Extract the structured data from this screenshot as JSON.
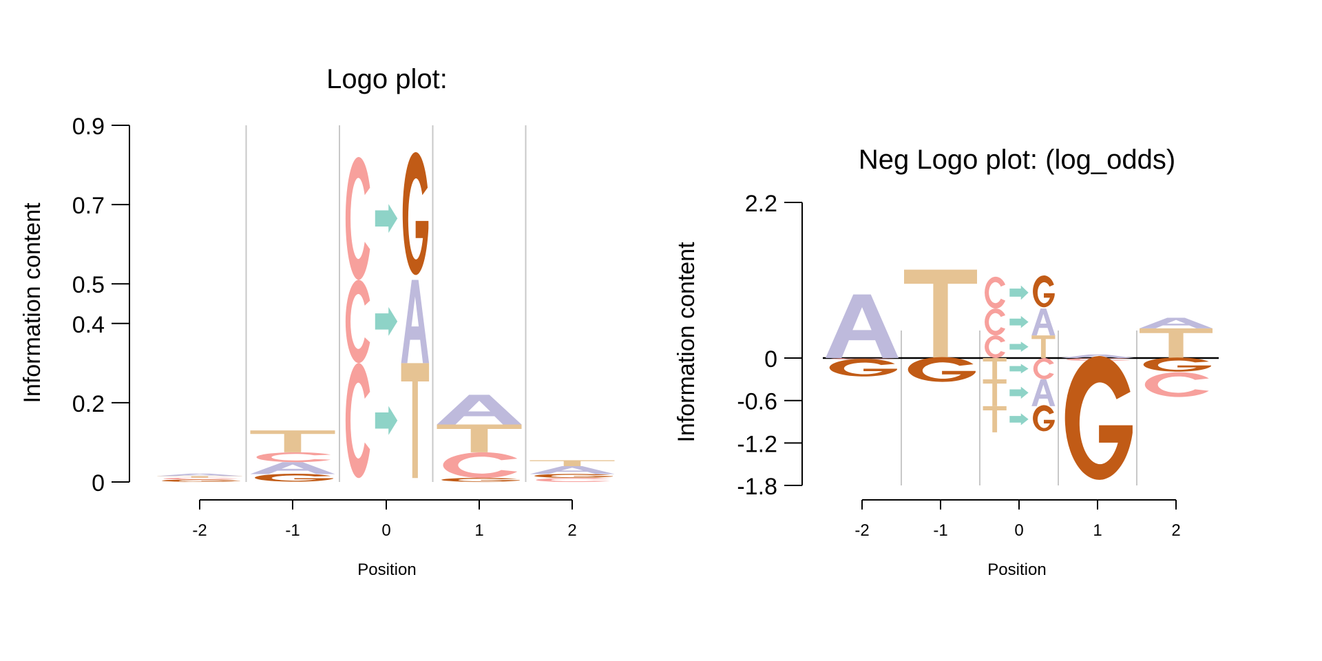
{
  "chart_data": [
    {
      "type": "logo",
      "title": "Logo plot:",
      "ylabel": "Information content",
      "xlabel": "Position",
      "ylim": [
        0,
        0.9
      ],
      "yticks": [
        "0",
        "0.2",
        "0.4",
        "0.5",
        "0.7",
        "0.9"
      ],
      "ytick_values": [
        0,
        0.2,
        0.4,
        0.5,
        0.7,
        0.9
      ],
      "positions": [
        -2,
        -1,
        0,
        1,
        2
      ],
      "xticks": [
        "-2",
        "-1",
        "0",
        "1",
        "2"
      ],
      "stacks": [
        {
          "position": -2,
          "letters": [
            {
              "letter": "G",
              "value": 0.006,
              "color": "#c15b16"
            },
            {
              "letter": "C",
              "value": 0.005,
              "color": "#f7a09c"
            },
            {
              "letter": "T",
              "value": 0.004,
              "color": "#e6c393"
            },
            {
              "letter": "A",
              "value": 0.006,
              "color": "#bebadc"
            }
          ]
        },
        {
          "position": -1,
          "letters": [
            {
              "letter": "G",
              "value": 0.02,
              "color": "#c15b16"
            },
            {
              "letter": "A",
              "value": 0.03,
              "color": "#bebadc"
            },
            {
              "letter": "C",
              "value": 0.025,
              "color": "#f7a09c"
            },
            {
              "letter": "T",
              "value": 0.055,
              "color": "#e6c393"
            }
          ]
        },
        {
          "position": 1,
          "letters": [
            {
              "letter": "G",
              "value": 0.01,
              "color": "#c15b16"
            },
            {
              "letter": "C",
              "value": 0.065,
              "color": "#f7a09c"
            },
            {
              "letter": "T",
              "value": 0.07,
              "color": "#e6c393"
            },
            {
              "letter": "A",
              "value": 0.075,
              "color": "#bebadc"
            }
          ]
        },
        {
          "position": 2,
          "letters": [
            {
              "letter": "C",
              "value": 0.01,
              "color": "#f7a09c"
            },
            {
              "letter": "G",
              "value": 0.01,
              "color": "#c15b16"
            },
            {
              "letter": "A",
              "value": 0.02,
              "color": "#bebadc"
            },
            {
              "letter": "T",
              "value": 0.015,
              "color": "#e6c393"
            }
          ]
        }
      ],
      "mutations": {
        "position": 0,
        "arrow_color": "#8ed3c7",
        "substitutions": [
          {
            "from": "C",
            "from_color": "#f7a09c",
            "to": "T",
            "to_color": "#e6c393",
            "y0": 0.01,
            "y1": 0.3
          },
          {
            "from": "C",
            "from_color": "#f7a09c",
            "to": "A",
            "to_color": "#bebadc",
            "y0": 0.3,
            "y1": 0.51
          },
          {
            "from": "C",
            "from_color": "#f7a09c",
            "to": "G",
            "to_color": "#c15b16",
            "y0": 0.51,
            "y1": 0.82
          }
        ]
      }
    },
    {
      "type": "logo",
      "title": "Neg Logo plot: (log_odds)",
      "ylabel": "Information content",
      "xlabel": "Position",
      "ylim": [
        -1.8,
        2.2
      ],
      "yticks": [
        "-1.8",
        "-1.2",
        "-0.6",
        "0",
        "2.2"
      ],
      "ytick_values": [
        -1.8,
        -1.2,
        -0.6,
        0,
        2.2
      ],
      "positions": [
        -2,
        -1,
        0,
        1,
        2
      ],
      "xticks": [
        "-2",
        "-1",
        "0",
        "1",
        "2"
      ],
      "stacks": [
        {
          "position": -2,
          "letters": [
            {
              "letter": "A",
              "value": 0.9,
              "color": "#bebadc"
            },
            {
              "letter": "C",
              "value": -0.02,
              "color": "#f7a09c"
            },
            {
              "letter": "G",
              "value": -0.25,
              "color": "#c15b16"
            }
          ]
        },
        {
          "position": -1,
          "letters": [
            {
              "letter": "T",
              "value": 1.25,
              "color": "#e6c393"
            },
            {
              "letter": "G",
              "value": -0.35,
              "color": "#c15b16"
            }
          ]
        },
        {
          "position": 1,
          "letters": [
            {
              "letter": "A",
              "value": 0.05,
              "color": "#bebadc"
            },
            {
              "letter": "C",
              "value": -0.04,
              "color": "#f7a09c"
            },
            {
              "letter": "G",
              "value": -1.75,
              "color": "#c15b16"
            }
          ]
        },
        {
          "position": 2,
          "letters": [
            {
              "letter": "T",
              "value": 0.42,
              "color": "#e6c393"
            },
            {
              "letter": "A",
              "value": 0.15,
              "color": "#bebadc"
            },
            {
              "letter": "G",
              "value": -0.2,
              "color": "#c15b16"
            },
            {
              "letter": "C",
              "value": -0.35,
              "color": "#f7a09c"
            }
          ]
        }
      ],
      "mutations": {
        "position": 0,
        "arrow_color": "#8ed3c7",
        "substitutions": [
          {
            "from": "C",
            "from_color": "#f7a09c",
            "to": "T",
            "to_color": "#e6c393",
            "y0": 0.0,
            "y1": 0.32
          },
          {
            "from": "C",
            "from_color": "#f7a09c",
            "to": "A",
            "to_color": "#bebadc",
            "y0": 0.32,
            "y1": 0.7
          },
          {
            "from": "C",
            "from_color": "#f7a09c",
            "to": "G",
            "to_color": "#c15b16",
            "y0": 0.7,
            "y1": 1.15
          },
          {
            "from": "T",
            "from_color": "#e6c393",
            "to": "C",
            "to_color": "#f7a09c",
            "y0": -0.3,
            "y1": 0.0
          },
          {
            "from": "T",
            "from_color": "#e6c393",
            "to": "A",
            "to_color": "#bebadc",
            "y0": -0.68,
            "y1": -0.3
          },
          {
            "from": "T",
            "from_color": "#e6c393",
            "to": "G",
            "to_color": "#c15b16",
            "y0": -1.05,
            "y1": -0.68
          }
        ]
      }
    }
  ]
}
